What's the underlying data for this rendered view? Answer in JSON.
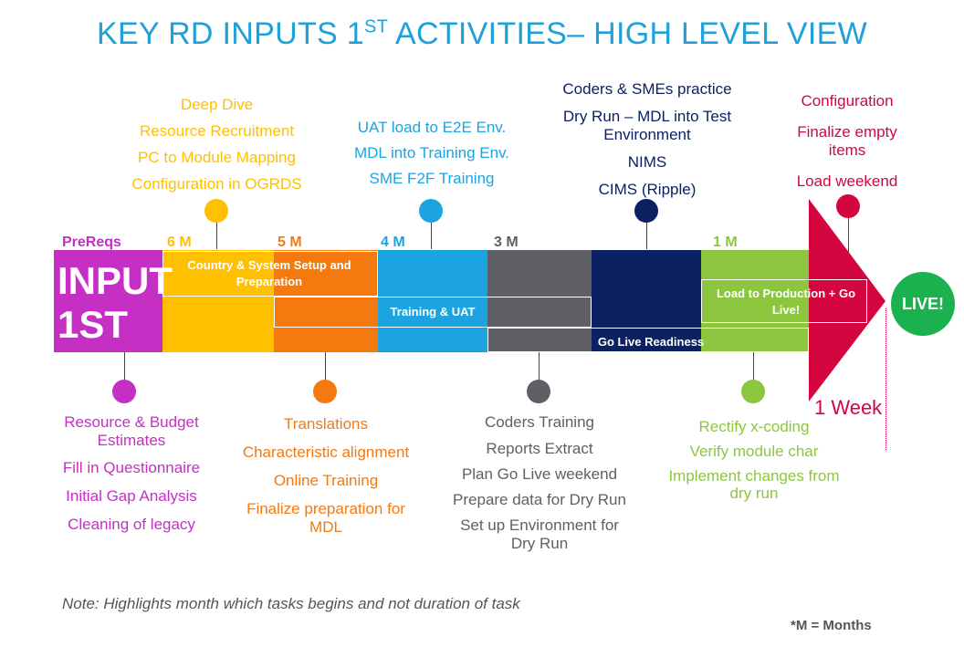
{
  "title": {
    "main": "KEY RD INPUTS 1",
    "sup": "ST",
    "rest": " ACTIVITIES– HIGH LEVEL VIEW"
  },
  "months": {
    "prereqs": "PreReqs",
    "m6": "6 M",
    "m5": "5 M",
    "m4": "4 M",
    "m3": "3 M",
    "m1": "1 M"
  },
  "bar": {
    "input_line1": "INPUT",
    "input_line2": "1ST",
    "country_setup": "Country & System Setup and Preparation",
    "training_uat": "Training & UAT",
    "go_live_readiness": "Go Live Readiness",
    "load_production": "Load to Production + Go Live!",
    "live": "LIVE!",
    "one_week": "1 Week"
  },
  "top_groups": {
    "yellow": [
      "Deep Dive",
      "Resource Recruitment",
      "PC to Module Mapping",
      "Configuration in OGRDS"
    ],
    "blue": [
      "UAT load to E2E Env.",
      "MDL into Training Env.",
      "SME F2F Training"
    ],
    "navy": [
      "Coders & SMEs practice",
      "Dry Run – MDL into Test Environment",
      "NIMS",
      "CIMS (Ripple)"
    ],
    "red": [
      "Configuration",
      "Finalize empty items",
      "Load weekend"
    ]
  },
  "bottom_groups": {
    "purple": [
      "Resource  & Budget Estimates",
      "Fill in Questionnaire",
      "Initial Gap Analysis",
      "Cleaning of legacy"
    ],
    "orange": [
      "Translations",
      "Characteristic alignment",
      "Online Training",
      "Finalize preparation for MDL"
    ],
    "gray": [
      "Coders Training",
      "Reports Extract",
      "Plan Go Live weekend",
      "Prepare data for Dry Run",
      "Set up Environment for Dry Run"
    ],
    "green": [
      "Rectify x-coding",
      "Verify module char",
      "Implement changes from dry run"
    ]
  },
  "note": "Note: Highlights month which tasks begins and not duration of task",
  "footnote": "*M = Months",
  "colors": {
    "title": "#1fa0d8",
    "purple": "#c62fc4",
    "yellow": "#ffc000",
    "orange": "#f47a0f",
    "blue": "#1ba4e0",
    "gray": "#5f6066",
    "navy": "#0b2161",
    "green": "#8cc63e",
    "red": "#d4063f",
    "live_green": "#1cb14f"
  }
}
